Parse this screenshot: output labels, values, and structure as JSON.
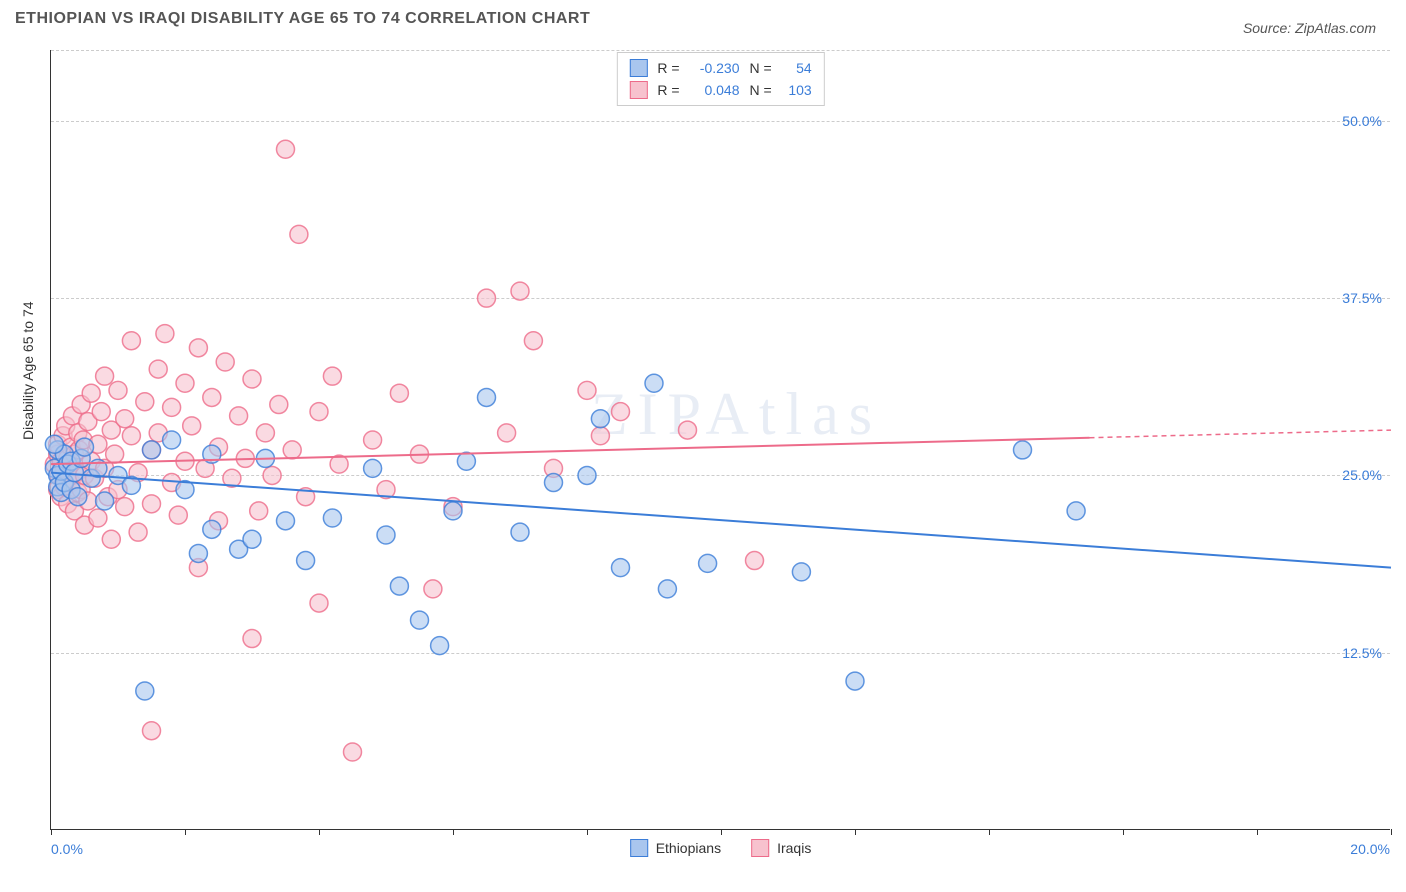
{
  "title": "ETHIOPIAN VS IRAQI DISABILITY AGE 65 TO 74 CORRELATION CHART",
  "source": "Source: ZipAtlas.com",
  "watermark": "ZIPAtlas",
  "y_axis_label": "Disability Age 65 to 74",
  "chart": {
    "type": "scatter",
    "xlim": [
      0,
      20
    ],
    "ylim": [
      0,
      55
    ],
    "x_tick_positions": [
      0,
      2,
      4,
      6,
      8,
      10,
      12,
      14,
      16,
      18,
      20
    ],
    "x_tick_labels_shown": {
      "left": "0.0%",
      "right": "20.0%"
    },
    "y_gridlines": [
      12.5,
      25.0,
      37.5,
      50.0,
      55.0
    ],
    "y_tick_labels": [
      "12.5%",
      "25.0%",
      "37.5%",
      "50.0%"
    ],
    "background_color": "#ffffff",
    "grid_color": "#cccccc",
    "axis_color": "#333333",
    "marker_radius": 9,
    "marker_stroke_width": 1.5,
    "marker_fill_opacity": 0.25,
    "series": [
      {
        "name": "Ethiopians",
        "color_stroke": "#3b7dd8",
        "color_fill": "#a9c6ee",
        "R": "-0.230",
        "N": "54",
        "regression": {
          "x0": 0,
          "y0": 25.2,
          "x1": 20,
          "y1": 18.5,
          "dash_from_x": null
        },
        "points": [
          [
            0.05,
            25.5
          ],
          [
            0.1,
            25.0
          ],
          [
            0.1,
            24.2
          ],
          [
            0.1,
            26.8
          ],
          [
            0.15,
            25.3
          ],
          [
            0.15,
            23.8
          ],
          [
            0.2,
            26.5
          ],
          [
            0.2,
            24.5
          ],
          [
            0.25,
            25.8
          ],
          [
            0.3,
            26.0
          ],
          [
            0.3,
            24.0
          ],
          [
            0.35,
            25.2
          ],
          [
            0.4,
            23.5
          ],
          [
            0.45,
            26.2
          ],
          [
            0.5,
            27.0
          ],
          [
            0.6,
            24.8
          ],
          [
            0.7,
            25.5
          ],
          [
            0.8,
            23.2
          ],
          [
            1.0,
            25.0
          ],
          [
            1.2,
            24.3
          ],
          [
            1.4,
            9.8
          ],
          [
            1.5,
            26.8
          ],
          [
            1.8,
            27.5
          ],
          [
            2.0,
            24.0
          ],
          [
            2.2,
            19.5
          ],
          [
            2.4,
            26.5
          ],
          [
            2.4,
            21.2
          ],
          [
            2.8,
            19.8
          ],
          [
            3.0,
            20.5
          ],
          [
            3.2,
            26.2
          ],
          [
            3.5,
            21.8
          ],
          [
            3.8,
            19.0
          ],
          [
            4.2,
            22.0
          ],
          [
            4.8,
            25.5
          ],
          [
            5.0,
            20.8
          ],
          [
            5.2,
            17.2
          ],
          [
            5.5,
            14.8
          ],
          [
            5.8,
            13.0
          ],
          [
            6.0,
            22.5
          ],
          [
            6.2,
            26.0
          ],
          [
            6.5,
            30.5
          ],
          [
            7.0,
            21.0
          ],
          [
            7.5,
            24.5
          ],
          [
            8.0,
            25.0
          ],
          [
            8.2,
            29.0
          ],
          [
            8.5,
            18.5
          ],
          [
            9.0,
            31.5
          ],
          [
            9.2,
            17.0
          ],
          [
            9.8,
            18.8
          ],
          [
            11.2,
            18.2
          ],
          [
            12.0,
            10.5
          ],
          [
            14.5,
            26.8
          ],
          [
            15.3,
            22.5
          ],
          [
            0.05,
            27.2
          ]
        ]
      },
      {
        "name": "Iraqis",
        "color_stroke": "#ed6b8a",
        "color_fill": "#f7c2ce",
        "R": "0.048",
        "N": "103",
        "regression": {
          "x0": 0,
          "y0": 25.8,
          "x1": 20,
          "y1": 28.2,
          "dash_from_x": 15.5
        },
        "points": [
          [
            0.05,
            25.8
          ],
          [
            0.1,
            26.5
          ],
          [
            0.1,
            24.0
          ],
          [
            0.1,
            27.2
          ],
          [
            0.12,
            25.0
          ],
          [
            0.15,
            26.0
          ],
          [
            0.15,
            23.5
          ],
          [
            0.18,
            27.8
          ],
          [
            0.2,
            25.5
          ],
          [
            0.2,
            24.2
          ],
          [
            0.22,
            28.5
          ],
          [
            0.25,
            26.2
          ],
          [
            0.25,
            23.0
          ],
          [
            0.28,
            25.8
          ],
          [
            0.3,
            27.0
          ],
          [
            0.3,
            24.5
          ],
          [
            0.32,
            29.2
          ],
          [
            0.35,
            26.5
          ],
          [
            0.35,
            22.5
          ],
          [
            0.38,
            25.2
          ],
          [
            0.4,
            28.0
          ],
          [
            0.4,
            23.8
          ],
          [
            0.42,
            26.8
          ],
          [
            0.45,
            30.0
          ],
          [
            0.45,
            24.0
          ],
          [
            0.48,
            27.5
          ],
          [
            0.5,
            25.0
          ],
          [
            0.5,
            21.5
          ],
          [
            0.55,
            28.8
          ],
          [
            0.55,
            23.2
          ],
          [
            0.6,
            26.0
          ],
          [
            0.6,
            30.8
          ],
          [
            0.65,
            24.8
          ],
          [
            0.7,
            27.2
          ],
          [
            0.7,
            22.0
          ],
          [
            0.75,
            29.5
          ],
          [
            0.8,
            25.5
          ],
          [
            0.8,
            32.0
          ],
          [
            0.85,
            23.5
          ],
          [
            0.9,
            28.2
          ],
          [
            0.9,
            20.5
          ],
          [
            0.95,
            26.5
          ],
          [
            1.0,
            31.0
          ],
          [
            1.0,
            24.0
          ],
          [
            1.1,
            29.0
          ],
          [
            1.1,
            22.8
          ],
          [
            1.2,
            27.8
          ],
          [
            1.2,
            34.5
          ],
          [
            1.3,
            25.2
          ],
          [
            1.3,
            21.0
          ],
          [
            1.4,
            30.2
          ],
          [
            1.5,
            26.8
          ],
          [
            1.5,
            23.0
          ],
          [
            1.6,
            32.5
          ],
          [
            1.6,
            28.0
          ],
          [
            1.7,
            35.0
          ],
          [
            1.8,
            24.5
          ],
          [
            1.8,
            29.8
          ],
          [
            1.9,
            22.2
          ],
          [
            2.0,
            31.5
          ],
          [
            2.0,
            26.0
          ],
          [
            2.1,
            28.5
          ],
          [
            2.2,
            18.5
          ],
          [
            2.2,
            34.0
          ],
          [
            2.3,
            25.5
          ],
          [
            2.4,
            30.5
          ],
          [
            2.5,
            27.0
          ],
          [
            2.5,
            21.8
          ],
          [
            2.6,
            33.0
          ],
          [
            2.7,
            24.8
          ],
          [
            2.8,
            29.2
          ],
          [
            2.9,
            26.2
          ],
          [
            3.0,
            31.8
          ],
          [
            3.0,
            13.5
          ],
          [
            3.1,
            22.5
          ],
          [
            3.2,
            28.0
          ],
          [
            3.3,
            25.0
          ],
          [
            3.4,
            30.0
          ],
          [
            3.5,
            48.0
          ],
          [
            3.6,
            26.8
          ],
          [
            3.7,
            42.0
          ],
          [
            3.8,
            23.5
          ],
          [
            4.0,
            29.5
          ],
          [
            4.0,
            16.0
          ],
          [
            4.2,
            32.0
          ],
          [
            4.3,
            25.8
          ],
          [
            4.5,
            5.5
          ],
          [
            4.8,
            27.5
          ],
          [
            5.0,
            24.0
          ],
          [
            5.2,
            30.8
          ],
          [
            5.5,
            26.5
          ],
          [
            5.7,
            17.0
          ],
          [
            6.0,
            22.8
          ],
          [
            6.5,
            37.5
          ],
          [
            6.8,
            28.0
          ],
          [
            7.0,
            38.0
          ],
          [
            7.2,
            34.5
          ],
          [
            7.5,
            25.5
          ],
          [
            8.0,
            31.0
          ],
          [
            8.2,
            27.8
          ],
          [
            8.5,
            29.5
          ],
          [
            9.5,
            28.2
          ],
          [
            10.5,
            19.0
          ],
          [
            1.5,
            7.0
          ]
        ]
      }
    ]
  },
  "legend_bottom": [
    {
      "label": "Ethiopians",
      "stroke": "#3b7dd8",
      "fill": "#a9c6ee"
    },
    {
      "label": "Iraqis",
      "stroke": "#ed6b8a",
      "fill": "#f7c2ce"
    }
  ]
}
